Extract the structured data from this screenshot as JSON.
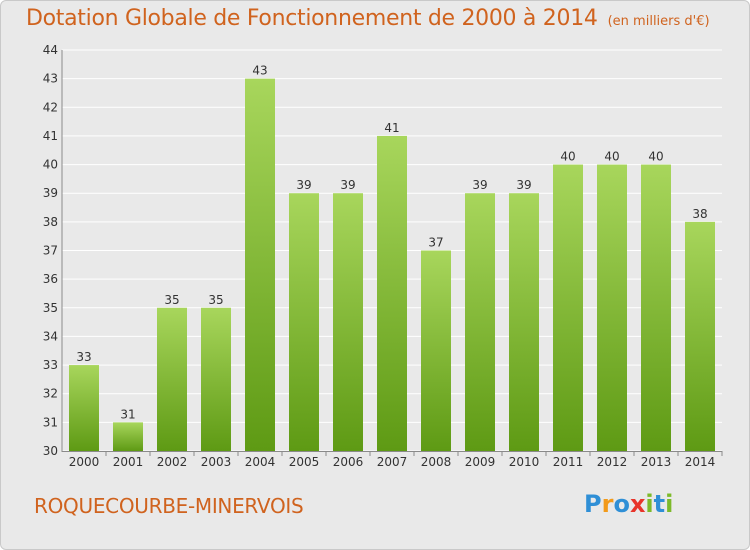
{
  "title": "Dotation Globale de Fonctionnement de 2000 à 2014",
  "subtitle": "(en milliers d'€)",
  "commune": "ROQUECOURBE-MINERVOIS",
  "logo": {
    "text": "Proxiti",
    "colors": [
      "#2f8fd6",
      "#f29a1a",
      "#2f8fd6",
      "#e8342a",
      "#7dba2a",
      "#2f8fd6",
      "#7dba2a"
    ]
  },
  "colors": {
    "bar_light": "#a8d65c",
    "bar_dark": "#5e9a14",
    "title": "#d0631e",
    "grid": "#ffffff",
    "background": "#e9e9e9"
  },
  "chart_data": {
    "type": "bar",
    "categories": [
      "2000",
      "2001",
      "2002",
      "2003",
      "2004",
      "2005",
      "2006",
      "2007",
      "2008",
      "2009",
      "2010",
      "2011",
      "2012",
      "2013",
      "2014"
    ],
    "values": [
      33,
      31,
      35,
      35,
      43,
      39,
      39,
      41,
      37,
      39,
      39,
      40,
      40,
      40,
      38
    ],
    "data_labels": [
      "33",
      "31",
      "35",
      "35",
      "43",
      "39",
      "39",
      "41",
      "37",
      "39",
      "39",
      "40",
      "40",
      "40",
      "38"
    ],
    "yticks": [
      "30",
      "31",
      "32",
      "33",
      "34",
      "35",
      "36",
      "37",
      "38",
      "39",
      "40",
      "41",
      "42",
      "43",
      "44"
    ],
    "ylim": [
      30,
      44
    ],
    "grid": true
  }
}
